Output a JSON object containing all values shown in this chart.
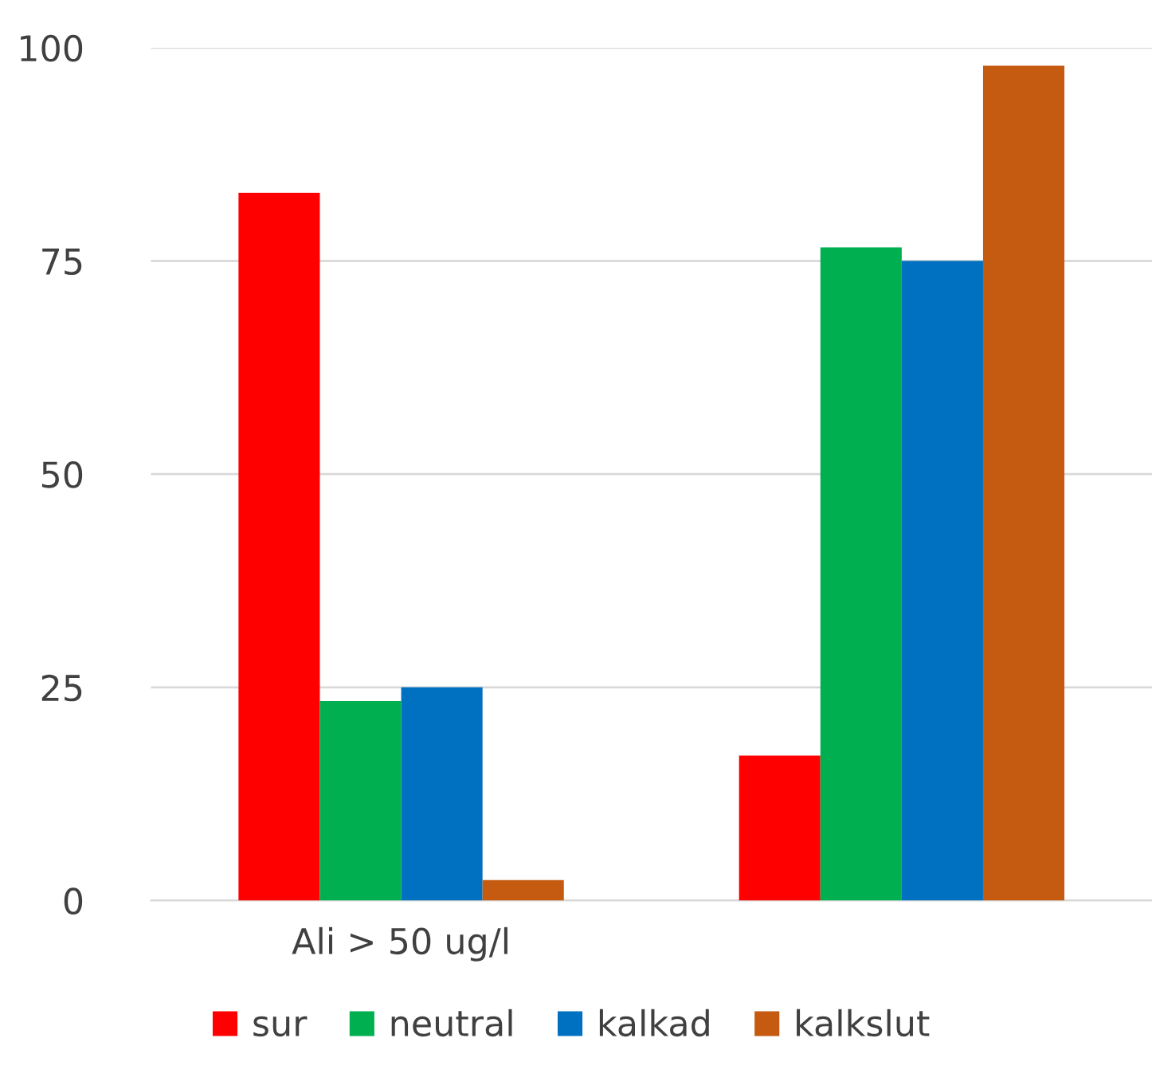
{
  "chart_data": {
    "type": "bar",
    "categories": [
      "Ali > 50 ug/l",
      null
    ],
    "series": [
      {
        "name": "sur",
        "color": "#ff0000",
        "values": [
          83,
          17
        ]
      },
      {
        "name": "neutral",
        "color": "#00b050",
        "values": [
          23.4,
          76.6
        ]
      },
      {
        "name": "kalkad",
        "color": "#0070c0",
        "values": [
          25,
          75
        ]
      },
      {
        "name": "kalkslut",
        "color": "#c55a11",
        "values": [
          2.4,
          97.9
        ]
      }
    ],
    "ylim": [
      0,
      100
    ],
    "yticks": [
      0,
      25,
      50,
      75,
      100
    ],
    "grid": "y",
    "legend": "bottom"
  }
}
